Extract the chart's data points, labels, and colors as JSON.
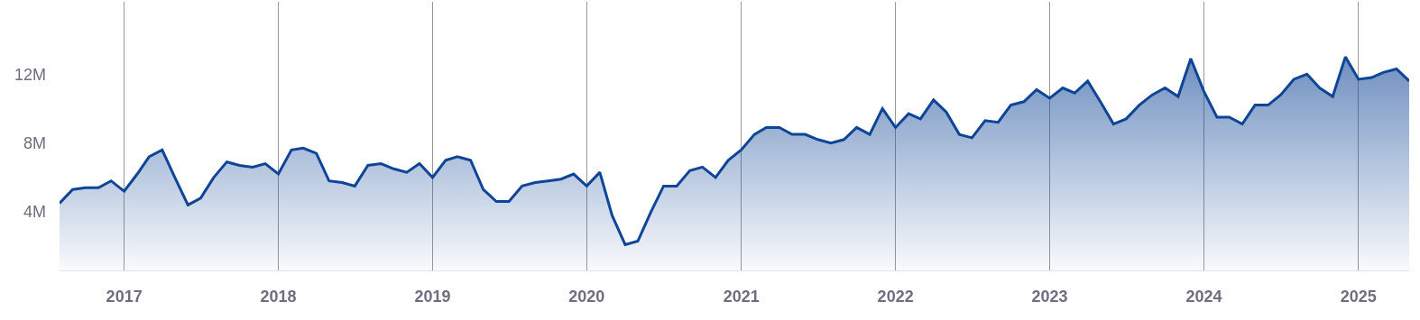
{
  "chart_data": {
    "type": "area",
    "x": [
      "2016-08",
      "2016-09",
      "2016-10",
      "2016-11",
      "2016-12",
      "2017-01",
      "2017-02",
      "2017-03",
      "2017-04",
      "2017-05",
      "2017-06",
      "2017-07",
      "2017-08",
      "2017-09",
      "2017-10",
      "2017-11",
      "2017-12",
      "2018-01",
      "2018-02",
      "2018-03",
      "2018-04",
      "2018-05",
      "2018-06",
      "2018-07",
      "2018-08",
      "2018-09",
      "2018-10",
      "2018-11",
      "2018-12",
      "2019-01",
      "2019-02",
      "2019-03",
      "2019-04",
      "2019-05",
      "2019-06",
      "2019-07",
      "2019-08",
      "2019-09",
      "2019-10",
      "2019-11",
      "2019-12",
      "2020-01",
      "2020-02",
      "2020-03",
      "2020-04",
      "2020-05",
      "2020-06",
      "2020-07",
      "2020-08",
      "2020-09",
      "2020-10",
      "2020-11",
      "2020-12",
      "2021-01",
      "2021-02",
      "2021-03",
      "2021-04",
      "2021-05",
      "2021-06",
      "2021-07",
      "2021-08",
      "2021-09",
      "2021-10",
      "2021-11",
      "2021-12",
      "2022-01",
      "2022-02",
      "2022-03",
      "2022-04",
      "2022-05",
      "2022-06",
      "2022-07",
      "2022-08",
      "2022-09",
      "2022-10",
      "2022-11",
      "2022-12",
      "2023-01",
      "2023-02",
      "2023-03",
      "2023-04",
      "2023-05",
      "2023-06",
      "2023-07",
      "2023-08",
      "2023-09",
      "2023-10",
      "2023-11",
      "2023-12",
      "2024-01",
      "2024-02",
      "2024-03",
      "2024-04",
      "2024-05",
      "2024-06",
      "2024-07",
      "2024-08",
      "2024-09",
      "2024-10",
      "2024-11",
      "2024-12",
      "2025-01",
      "2025-02",
      "2025-03",
      "2025-04",
      "2025-05"
    ],
    "series": [
      {
        "color": "#0f4596",
        "values": [
          4.5,
          5.3,
          5.4,
          5.4,
          5.8,
          5.2,
          6.2,
          7.2,
          7.6,
          6.0,
          4.4,
          4.8,
          6.0,
          6.9,
          6.7,
          6.6,
          6.8,
          6.2,
          7.6,
          7.7,
          7.4,
          5.8,
          5.7,
          5.5,
          6.7,
          6.8,
          6.5,
          6.3,
          6.8,
          6.0,
          7.0,
          7.2,
          7.0,
          5.3,
          4.6,
          4.6,
          5.5,
          5.7,
          5.8,
          5.9,
          6.2,
          5.5,
          6.3,
          3.8,
          2.1,
          2.3,
          4.0,
          5.5,
          5.5,
          6.4,
          6.6,
          6.0,
          7.0,
          7.6,
          8.5,
          8.9,
          8.9,
          8.5,
          8.5,
          8.2,
          8.0,
          8.2,
          8.9,
          8.5,
          10.0,
          8.9,
          9.7,
          9.4,
          10.5,
          9.8,
          8.5,
          8.3,
          9.3,
          9.2,
          10.2,
          10.4,
          11.1,
          10.6,
          11.2,
          10.9,
          11.6,
          10.4,
          9.1,
          9.4,
          10.2,
          10.8,
          11.2,
          10.7,
          12.9,
          11.0,
          9.5,
          9.5,
          9.1,
          10.2,
          10.2,
          10.8,
          11.7,
          12.0,
          11.2,
          10.7,
          13.0,
          11.7,
          11.8,
          12.1,
          12.3,
          11.6
        ]
      }
    ],
    "xlim": [
      "2016-08",
      "2025-05"
    ],
    "xticks": [
      "2017",
      "2018",
      "2019",
      "2020",
      "2021",
      "2022",
      "2023",
      "2024",
      "2025"
    ],
    "ylim": [
      0.6,
      16.2
    ],
    "yticks": [
      {
        "value": 4,
        "label": "4M"
      },
      {
        "value": 8,
        "label": "8M"
      },
      {
        "value": 12,
        "label": "12M"
      }
    ],
    "grid": "x"
  }
}
